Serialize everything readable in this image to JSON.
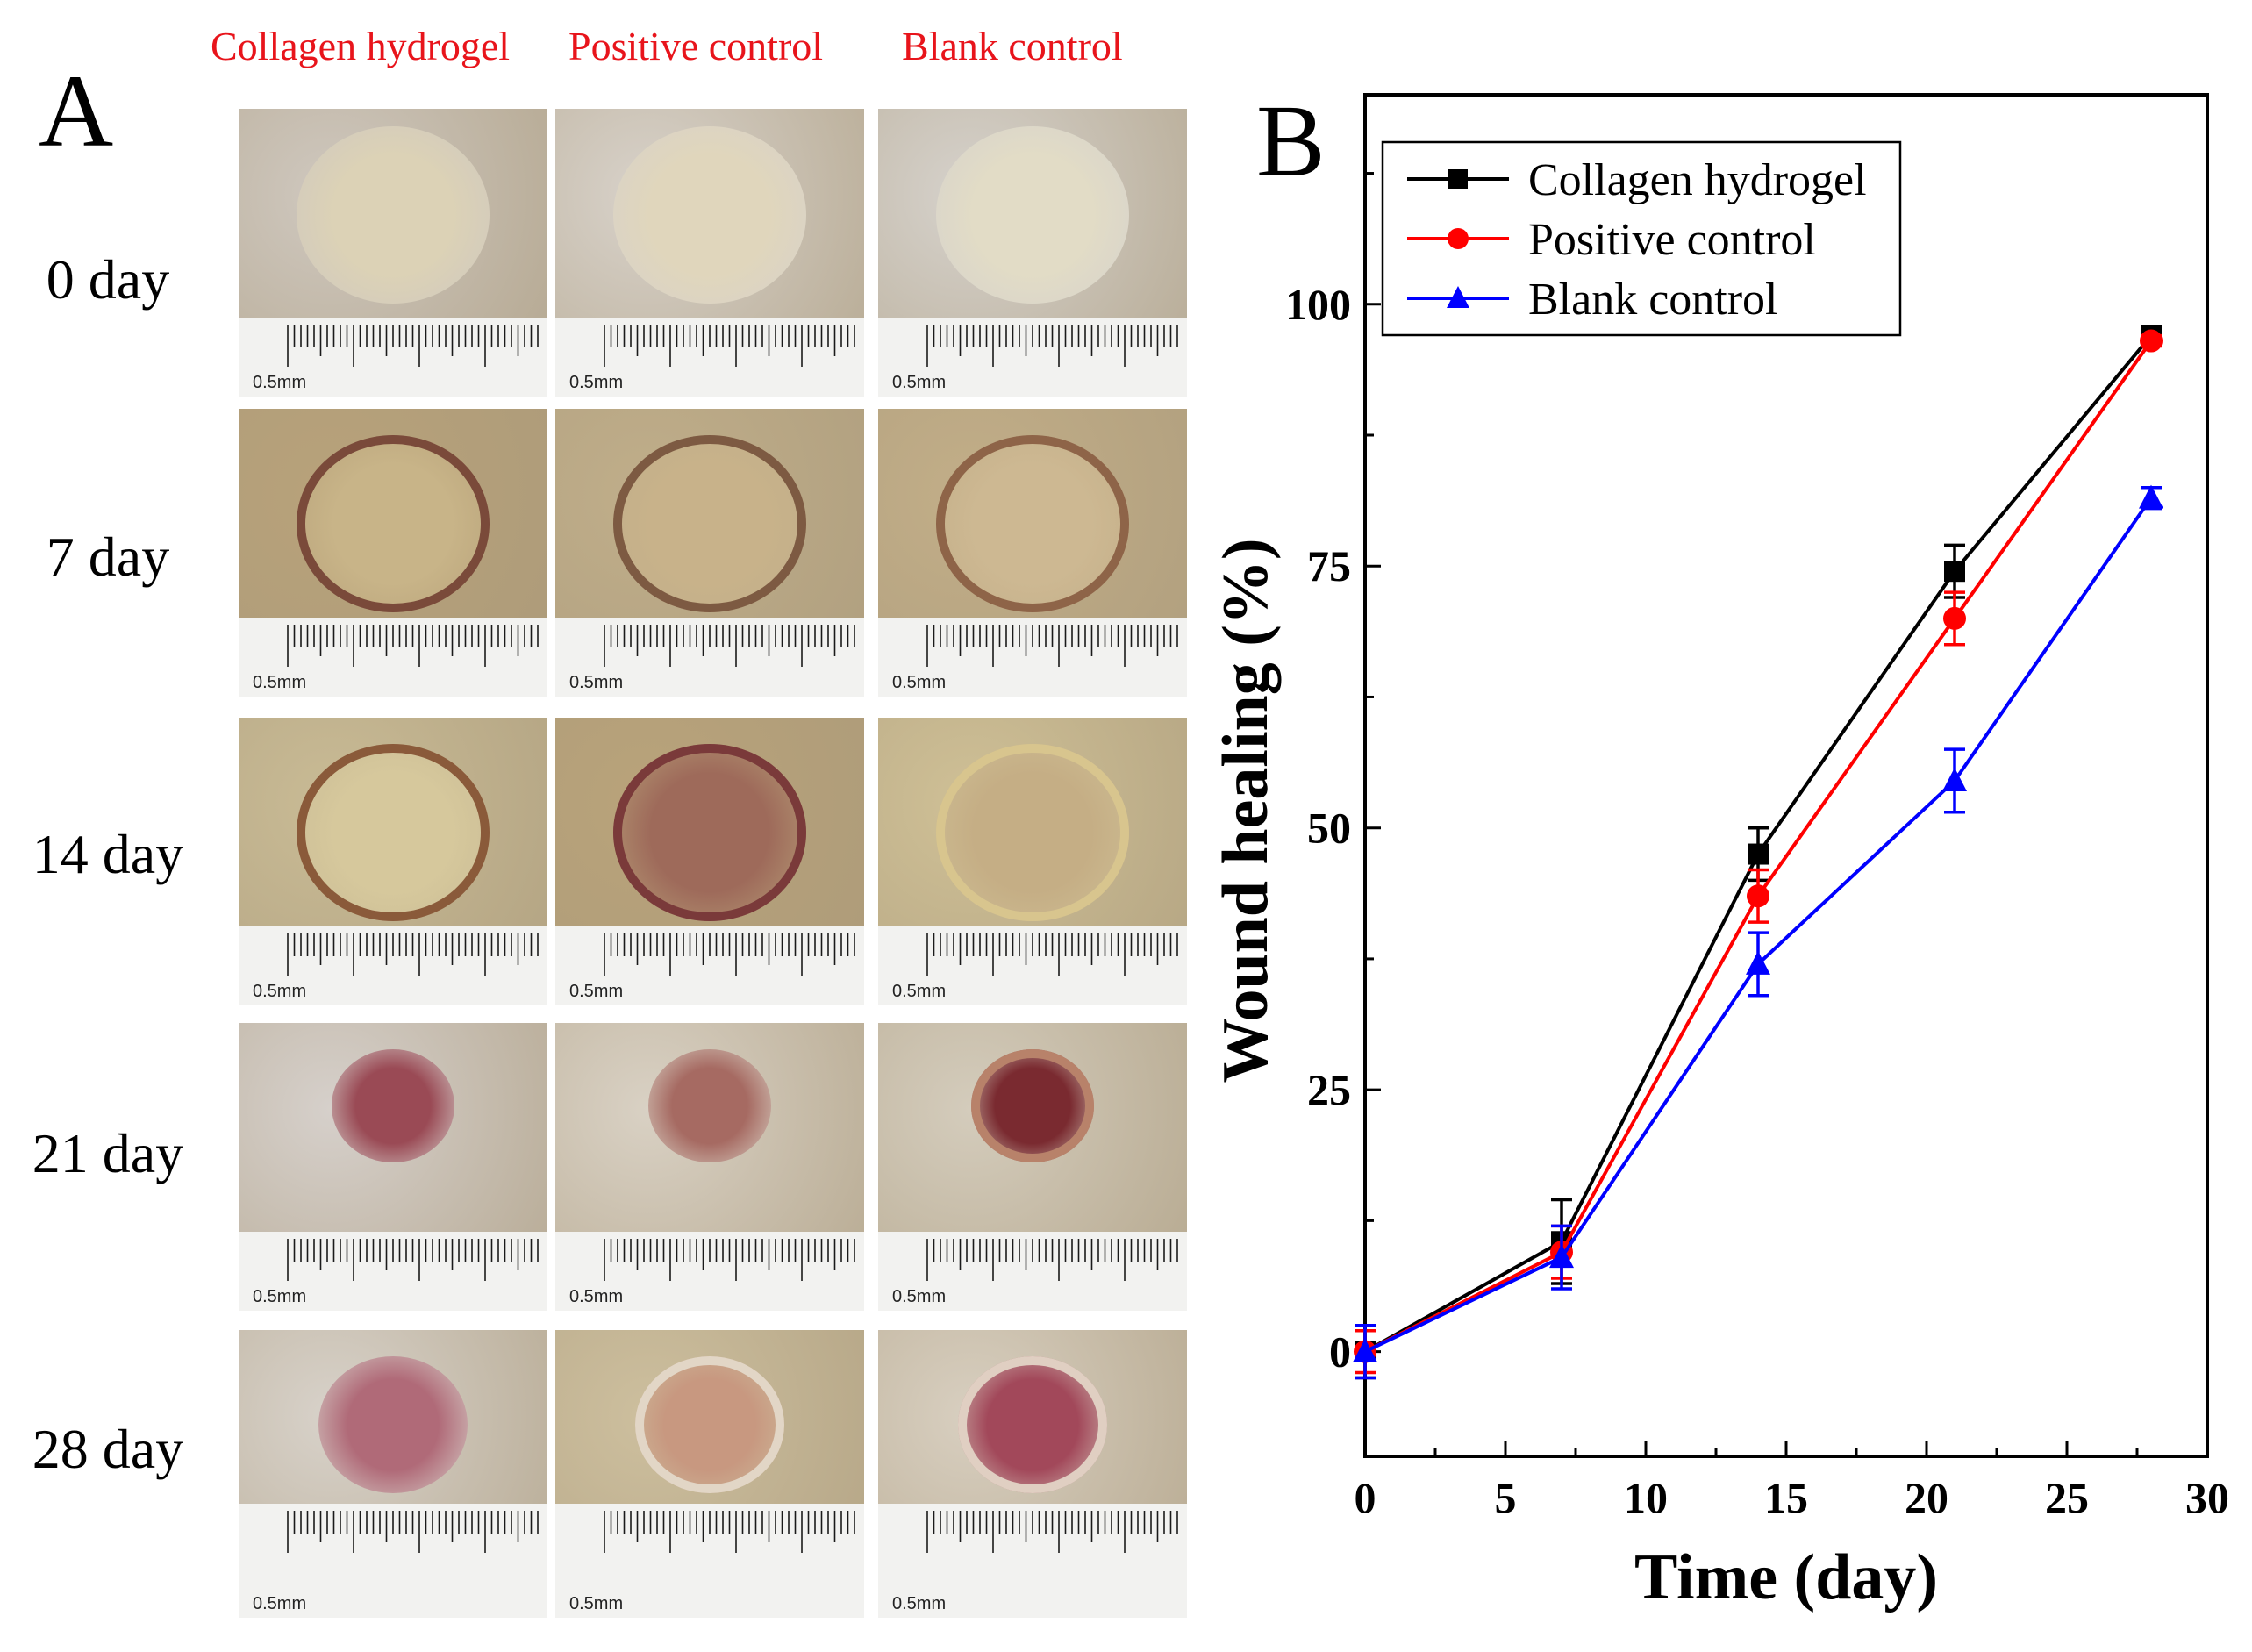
{
  "panel_a": {
    "letter": "A",
    "columns": [
      "Collagen hydrogel",
      "Positive control",
      "Blank control"
    ],
    "rows": [
      "0 day",
      "7 day",
      "14 day",
      "21 day",
      "28 day"
    ],
    "scale_label": "0.5mm",
    "colors": {
      "header_red": "#e8141b"
    }
  },
  "panel_b": {
    "letter": "B"
  },
  "chart_data": {
    "type": "line",
    "title": "",
    "xlabel": "Time (day)",
    "ylabel": "Wound healing (%)",
    "xlim": [
      0,
      30
    ],
    "ylim": [
      -10,
      120
    ],
    "xticks": [
      0,
      5,
      10,
      15,
      20,
      25,
      30
    ],
    "yticks": [
      0,
      25,
      50,
      75,
      100
    ],
    "grid": false,
    "legend": "top-left",
    "x": [
      0,
      7,
      14,
      21,
      28
    ],
    "series": [
      {
        "name": "Collagen hydrogel",
        "color": "#000000",
        "marker": "square",
        "values": [
          0,
          10.5,
          47.5,
          74.5,
          97
        ],
        "errors": [
          2.5,
          4,
          2.5,
          2.5,
          0.5
        ]
      },
      {
        "name": "Positive control",
        "color": "#ff0000",
        "marker": "circle",
        "values": [
          0,
          9.5,
          43.5,
          70,
          96.5
        ],
        "errors": [
          2,
          2.5,
          2.5,
          2.5,
          0.5
        ]
      },
      {
        "name": "Blank control",
        "color": "#0000ff",
        "marker": "triangle",
        "values": [
          0,
          9,
          37,
          54.5,
          81.5
        ],
        "errors": [
          2.5,
          3,
          3,
          3,
          1
        ]
      }
    ]
  }
}
